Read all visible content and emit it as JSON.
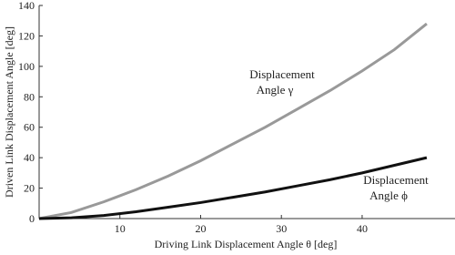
{
  "chart_data": {
    "type": "line",
    "x_label": "Driving Link Displacement Angle θ [deg]",
    "y_label": "Driven Link Displacement Angle [deg]",
    "x": [
      0,
      4,
      8,
      12,
      16,
      20,
      24,
      28,
      32,
      36,
      40,
      44,
      48
    ],
    "series": [
      {
        "color": "#999999",
        "values": [
          0,
          4,
          11,
          19,
          28,
          38,
          49,
          60,
          72,
          84,
          97,
          111,
          128
        ]
      },
      {
        "color": "#111111",
        "values": [
          0,
          0.5,
          2,
          4.5,
          7.5,
          10.5,
          14,
          17.5,
          21.5,
          25.5,
          30,
          35,
          40
        ]
      }
    ],
    "annotations": [
      {
        "lines": [
          "Displacement",
          "Angle γ"
        ]
      },
      {
        "lines": [
          "Displacement",
          "Angle ϕ"
        ]
      }
    ],
    "xlim": [
      0,
      51.5
    ],
    "ylim": [
      0,
      140
    ],
    "xticks": [
      10,
      20,
      30,
      40
    ],
    "yticks": [
      0,
      20,
      40,
      60,
      80,
      100,
      120,
      140
    ]
  }
}
